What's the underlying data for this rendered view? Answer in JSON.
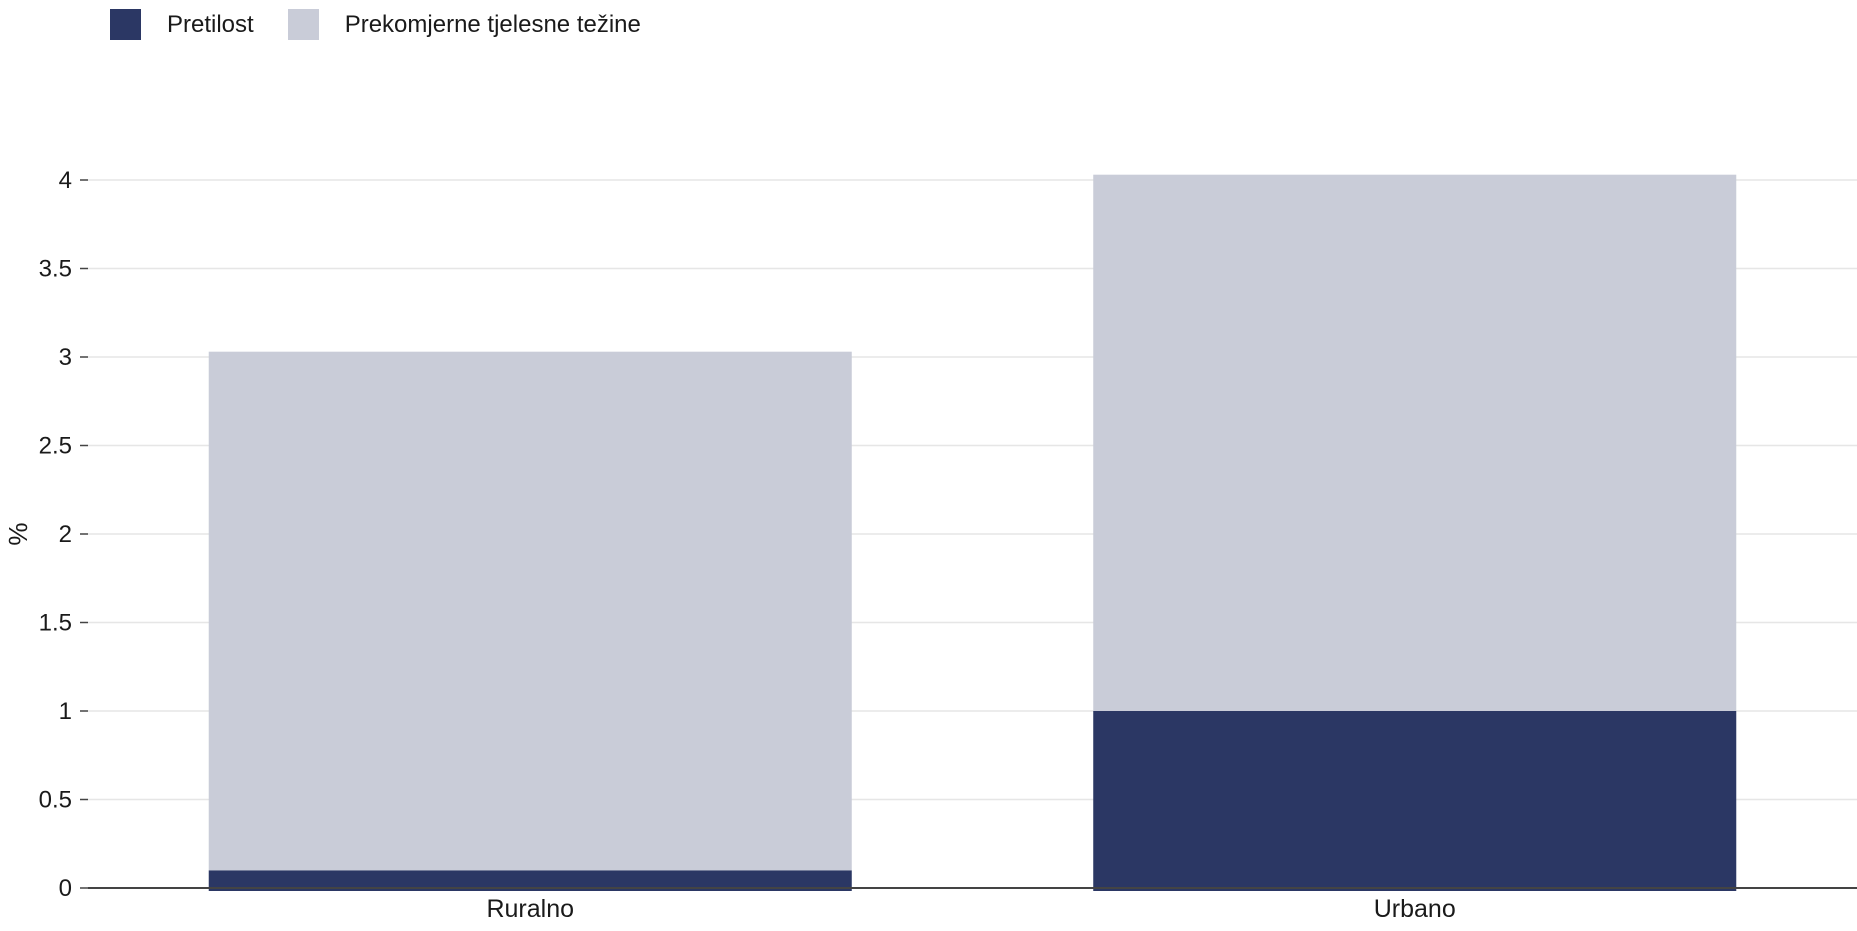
{
  "chart_data": {
    "type": "bar",
    "stacked": true,
    "categories": [
      "Ruralno",
      "Urbano"
    ],
    "series": [
      {
        "name": "Pretilost",
        "values": [
          0.1,
          1.0
        ],
        "color": "#2b3764"
      },
      {
        "name": "Prekomjerne tjelesne težine",
        "values": [
          2.93,
          3.03
        ],
        "color": "#c9ccd8"
      }
    ],
    "ylabel": "%",
    "xlabel": "",
    "ylim": [
      0,
      4
    ],
    "yticks": [
      0,
      0.5,
      1,
      1.5,
      2,
      2.5,
      3,
      3.5,
      4
    ],
    "grid": true,
    "legend_position": "top-left"
  }
}
